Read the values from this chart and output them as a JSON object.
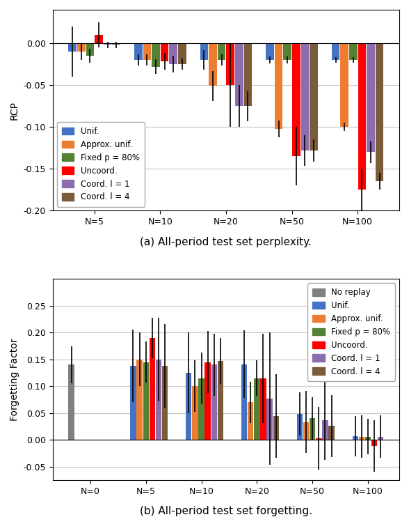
{
  "top": {
    "title": "(a) All-period test set perplexity.",
    "ylabel": "RCP",
    "xlabels": [
      "N=5",
      "N=10",
      "N=20",
      "N=50",
      "N=100"
    ],
    "ylim": [
      -0.2,
      0.04
    ],
    "yticks": [
      0.0,
      -0.05,
      -0.1,
      -0.15,
      -0.2
    ],
    "series": [
      {
        "label": "Unif.",
        "color": "#4472c4",
        "values": [
          -0.01,
          -0.02,
          -0.02,
          -0.02,
          -0.02
        ],
        "errors": [
          0.03,
          0.007,
          0.012,
          0.004,
          0.003
        ]
      },
      {
        "label": "Approx. unif.",
        "color": "#ed7d31",
        "values": [
          -0.01,
          -0.02,
          -0.051,
          -0.102,
          -0.1
        ],
        "errors": [
          0.01,
          0.007,
          0.018,
          0.01,
          0.005
        ]
      },
      {
        "label": "Fixed p = 80%",
        "color": "#548235",
        "values": [
          -0.015,
          -0.028,
          -0.02,
          -0.02,
          -0.02
        ],
        "errors": [
          0.008,
          0.009,
          0.007,
          0.004,
          0.003
        ]
      },
      {
        "label": "Uncoord.",
        "color": "#ff0000",
        "values": [
          0.01,
          -0.022,
          -0.05,
          -0.135,
          -0.175
        ],
        "errors": [
          0.015,
          0.01,
          0.05,
          0.035,
          0.025
        ]
      },
      {
        "label": "Coord. l = 1",
        "color": "#8b6db0",
        "values": [
          -0.002,
          -0.025,
          -0.075,
          -0.128,
          -0.13
        ],
        "errors": [
          0.004,
          0.01,
          0.025,
          0.018,
          0.013
        ]
      },
      {
        "label": "Coord. l = 4",
        "color": "#7b5c3a",
        "values": [
          -0.002,
          -0.025,
          -0.075,
          -0.128,
          -0.165
        ],
        "errors": [
          0.004,
          0.007,
          0.018,
          0.013,
          0.01
        ]
      }
    ]
  },
  "bottom": {
    "title": "(b) All-period test set forgetting.",
    "ylabel": "Forgetting Factor",
    "xlabels": [
      "N=0",
      "N=5",
      "N=10",
      "N=20",
      "N=50",
      "N=100"
    ],
    "ylim": [
      -0.075,
      0.3
    ],
    "yticks": [
      -0.05,
      0.0,
      0.05,
      0.1,
      0.15,
      0.2,
      0.25
    ],
    "series": [
      {
        "label": "No replay",
        "color": "#808080",
        "values": [
          0.14,
          null,
          null,
          null,
          null,
          null
        ],
        "errors": [
          0.035,
          null,
          null,
          null,
          null,
          null
        ]
      },
      {
        "label": "Unif.",
        "color": "#4472c4",
        "values": [
          null,
          0.138,
          0.125,
          0.141,
          0.048,
          0.007
        ],
        "errors": [
          null,
          0.068,
          0.075,
          0.063,
          0.04,
          0.038
        ]
      },
      {
        "label": "Approx. unif.",
        "color": "#ed7d31",
        "values": [
          null,
          0.15,
          0.1,
          0.07,
          0.033,
          0.006
        ],
        "errors": [
          null,
          0.05,
          0.048,
          0.038,
          0.058,
          0.04
        ]
      },
      {
        "label": "Fixed p = 80%",
        "color": "#548235",
        "values": [
          null,
          0.145,
          0.115,
          0.115,
          0.04,
          0.006
        ],
        "errors": [
          null,
          0.038,
          0.048,
          0.033,
          0.04,
          0.033
        ]
      },
      {
        "label": "Uncoord.",
        "color": "#ff0000",
        "values": [
          null,
          0.19,
          0.145,
          0.115,
          0.003,
          -0.012
        ],
        "errors": [
          null,
          0.038,
          0.058,
          0.083,
          0.058,
          0.048
        ]
      },
      {
        "label": "Coord. l = 1",
        "color": "#8b6db0",
        "values": [
          null,
          0.15,
          0.14,
          0.077,
          0.036,
          0.006
        ],
        "errors": [
          null,
          0.078,
          0.058,
          0.123,
          0.073,
          0.04
        ]
      },
      {
        "label": "Coord. l = 4",
        "color": "#7b5c3a",
        "values": [
          null,
          0.138,
          0.147,
          0.044,
          0.026,
          null
        ],
        "errors": [
          null,
          0.078,
          0.043,
          0.078,
          0.058,
          null
        ]
      }
    ]
  },
  "fig_bg": "#ffffff",
  "ax_bg": "#ffffff",
  "grid_color": "#c8c8c8"
}
